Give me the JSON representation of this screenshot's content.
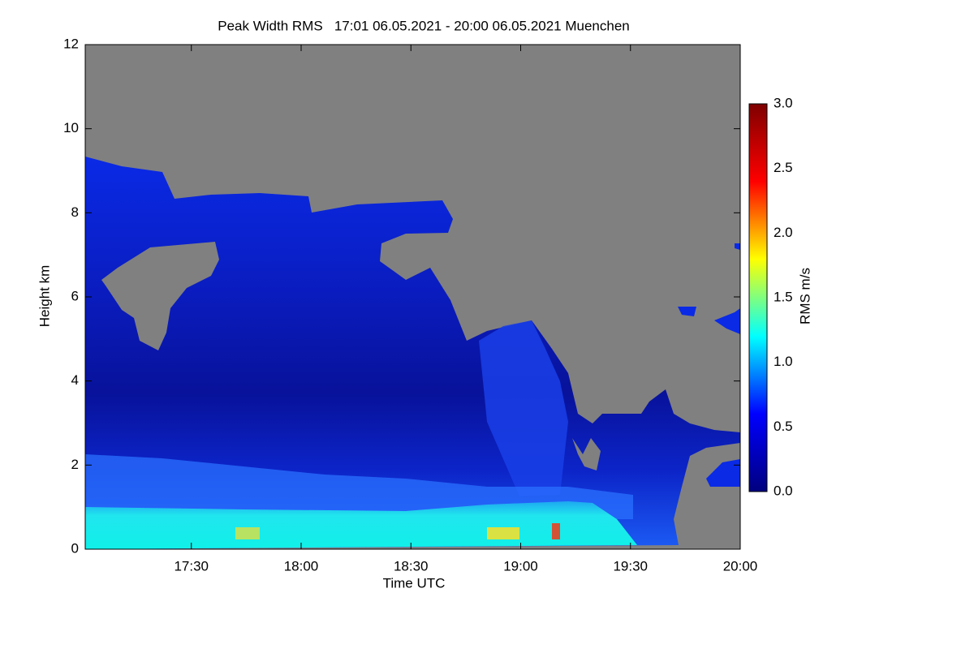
{
  "chart_data": {
    "type": "heatmap",
    "title": "Peak Width RMS   17:01 06.05.2021 - 20:00 06.05.2021 Muenchen",
    "x_label": "Time UTC",
    "y_label": "Height km",
    "xlim": [
      "17:01",
      "20:00"
    ],
    "xticks": [
      "17:30",
      "18:00",
      "18:30",
      "19:00",
      "19:30",
      "20:00"
    ],
    "ylim": [
      0,
      12
    ],
    "yticks": [
      0,
      2,
      4,
      6,
      8,
      10,
      12
    ],
    "colorbar": {
      "label": "RMS m/s",
      "lim": [
        0,
        3
      ],
      "ticks": [
        {
          "value": 0,
          "label": "0.0"
        },
        {
          "value": 0.5,
          "label": "0.5"
        },
        {
          "value": 1,
          "label": "1.0"
        },
        {
          "value": 1.5,
          "label": "1.5"
        },
        {
          "value": 2,
          "label": "2.0"
        },
        {
          "value": 2.5,
          "label": "2.5"
        },
        {
          "value": 3,
          "label": "3.0"
        }
      ],
      "colormap": [
        "#00007f",
        "#0000ff",
        "#00ffff",
        "#ffff00",
        "#ff0000",
        "#7f0000"
      ]
    },
    "missing_color": "#808080"
  }
}
